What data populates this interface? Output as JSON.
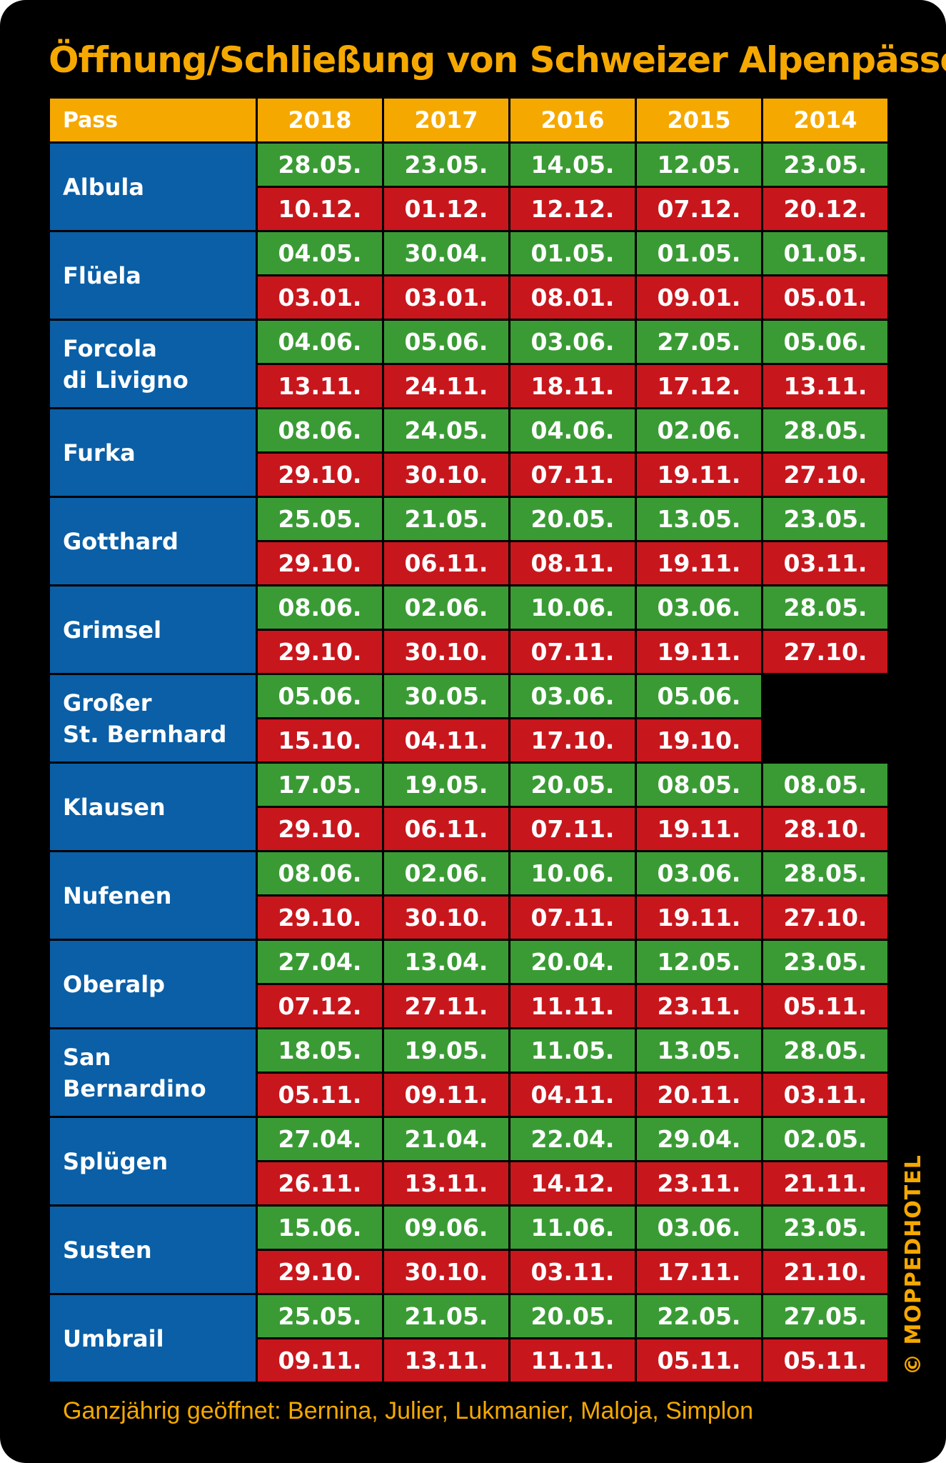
{
  "title": "Öffnung/Schließung von Schweizer Alpenpässen",
  "header": {
    "pass_label": "Pass",
    "years": [
      "2018",
      "2017",
      "2016",
      "2015",
      "2014"
    ]
  },
  "rows": [
    {
      "pass": "Albula",
      "open": [
        "28.05.",
        "23.05.",
        "14.05.",
        "12.05.",
        "23.05."
      ],
      "close": [
        "10.12.",
        "01.12.",
        "12.12.",
        "07.12.",
        "20.12."
      ]
    },
    {
      "pass": "Flüela",
      "open": [
        "04.05.",
        "30.04.",
        "01.05.",
        "01.05.",
        "01.05."
      ],
      "close": [
        "03.01.",
        "03.01.",
        "08.01.",
        "09.01.",
        "05.01."
      ]
    },
    {
      "pass": "Forcola\ndi Livigno",
      "open": [
        "04.06.",
        "05.06.",
        "03.06.",
        "27.05.",
        "05.06."
      ],
      "close": [
        "13.11.",
        "24.11.",
        "18.11.",
        "17.12.",
        "13.11."
      ]
    },
    {
      "pass": "Furka",
      "open": [
        "08.06.",
        "24.05.",
        "04.06.",
        "02.06.",
        "28.05."
      ],
      "close": [
        "29.10.",
        "30.10.",
        "07.11.",
        "19.11.",
        "27.10."
      ]
    },
    {
      "pass": "Gotthard",
      "open": [
        "25.05.",
        "21.05.",
        "20.05.",
        "13.05.",
        "23.05."
      ],
      "close": [
        "29.10.",
        "06.11.",
        "08.11.",
        "19.11.",
        "03.11."
      ]
    },
    {
      "pass": "Grimsel",
      "open": [
        "08.06.",
        "02.06.",
        "10.06.",
        "03.06.",
        "28.05."
      ],
      "close": [
        "29.10.",
        "30.10.",
        "07.11.",
        "19.11.",
        "27.10."
      ]
    },
    {
      "pass": "Großer\nSt. Bernhard",
      "open": [
        "05.06.",
        "30.05.",
        "03.06.",
        "05.06.",
        null
      ],
      "close": [
        "15.10.",
        "04.11.",
        "17.10.",
        "19.10.",
        null
      ]
    },
    {
      "pass": "Klausen",
      "open": [
        "17.05.",
        "19.05.",
        "20.05.",
        "08.05.",
        "08.05."
      ],
      "close": [
        "29.10.",
        "06.11.",
        "07.11.",
        "19.11.",
        "28.10."
      ]
    },
    {
      "pass": "Nufenen",
      "open": [
        "08.06.",
        "02.06.",
        "10.06.",
        "03.06.",
        "28.05."
      ],
      "close": [
        "29.10.",
        "30.10.",
        "07.11.",
        "19.11.",
        "27.10."
      ]
    },
    {
      "pass": "Oberalp",
      "open": [
        "27.04.",
        "13.04.",
        "20.04.",
        "12.05.",
        "23.05."
      ],
      "close": [
        "07.12.",
        "27.11.",
        "11.11.",
        "23.11.",
        "05.11."
      ]
    },
    {
      "pass": "San\nBernardino",
      "open": [
        "18.05.",
        "19.05.",
        "11.05.",
        "13.05.",
        "28.05."
      ],
      "close": [
        "05.11.",
        "09.11.",
        "04.11.",
        "20.11.",
        "03.11."
      ]
    },
    {
      "pass": "Splügen",
      "open": [
        "27.04.",
        "21.04.",
        "22.04.",
        "29.04.",
        "02.05."
      ],
      "close": [
        "26.11.",
        "13.11.",
        "14.12.",
        "23.11.",
        "21.11."
      ]
    },
    {
      "pass": "Susten",
      "open": [
        "15.06.",
        "09.06.",
        "11.06.",
        "03.06.",
        "23.05."
      ],
      "close": [
        "29.10.",
        "30.10.",
        "03.11.",
        "17.11.",
        "21.10."
      ]
    },
    {
      "pass": "Umbrail",
      "open": [
        "25.05.",
        "21.05.",
        "20.05.",
        "22.05.",
        "27.05."
      ],
      "close": [
        "09.11.",
        "13.11.",
        "11.11.",
        "05.11.",
        "05.11."
      ]
    }
  ],
  "footer": "Ganzjährig geöffnet: Bernina, Julier, Lukmanier, Maloja, Simplon",
  "copyright": "© MOPPEDHOTEL",
  "colors": {
    "header": "#f5a800",
    "pass": "#0a5fa6",
    "open": "#3a9b35",
    "close": "#c8161d",
    "background": "#000000"
  }
}
